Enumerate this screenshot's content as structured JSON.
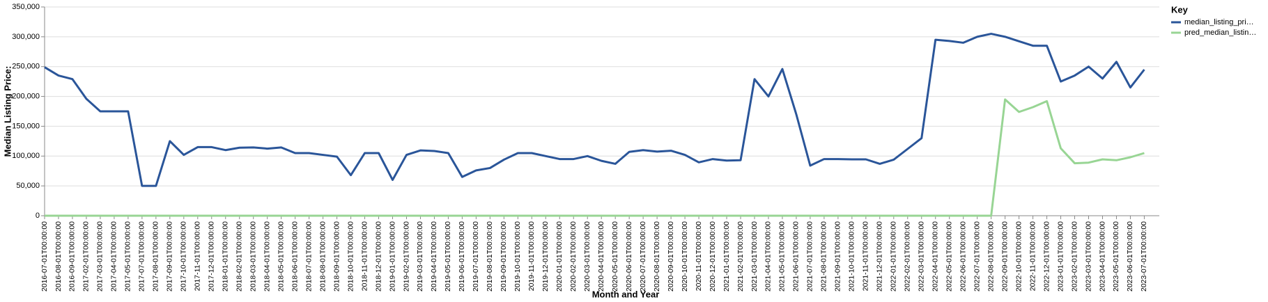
{
  "chart_data": {
    "type": "line",
    "x_label": "Month and Year",
    "y_label": "Median Listing Price:",
    "legend_title": "Key",
    "legend": "top-right",
    "grid": true,
    "categories": [
      "2016-07-01T00:00:00",
      "2016-08-01T00:00:00",
      "2016-09-01T00:00:00",
      "2017-02-01T00:00:00",
      "2017-03-01T00:00:00",
      "2017-04-01T00:00:00",
      "2017-05-01T00:00:00",
      "2017-07-01T00:00:00",
      "2017-08-01T00:00:00",
      "2017-09-01T00:00:00",
      "2017-10-01T00:00:00",
      "2017-11-01T00:00:00",
      "2017-12-01T00:00:00",
      "2018-01-01T00:00:00",
      "2018-02-01T00:00:00",
      "2018-03-01T00:00:00",
      "2018-04-01T00:00:00",
      "2018-05-01T00:00:00",
      "2018-06-01T00:00:00",
      "2018-07-01T00:00:00",
      "2018-08-01T00:00:00",
      "2018-09-01T00:00:00",
      "2018-10-01T00:00:00",
      "2018-11-01T00:00:00",
      "2018-12-01T00:00:00",
      "2019-01-01T00:00:00",
      "2019-02-01T00:00:00",
      "2019-03-01T00:00:00",
      "2019-04-01T00:00:00",
      "2019-05-01T00:00:00",
      "2019-06-01T00:00:00",
      "2019-07-01T00:00:00",
      "2019-08-01T00:00:00",
      "2019-09-01T00:00:00",
      "2019-10-01T00:00:00",
      "2019-11-01T00:00:00",
      "2019-12-01T00:00:00",
      "2020-01-01T00:00:00",
      "2020-02-01T00:00:00",
      "2020-03-01T00:00:00",
      "2020-04-01T00:00:00",
      "2020-05-01T00:00:00",
      "2020-06-01T00:00:00",
      "2020-07-01T00:00:00",
      "2020-08-01T00:00:00",
      "2020-09-01T00:00:00",
      "2020-10-01T00:00:00",
      "2020-11-01T00:00:00",
      "2020-12-01T00:00:00",
      "2021-01-01T00:00:00",
      "2021-02-01T00:00:00",
      "2021-03-01T00:00:00",
      "2021-04-01T00:00:00",
      "2021-05-01T00:00:00",
      "2021-06-01T00:00:00",
      "2021-07-01T00:00:00",
      "2021-08-01T00:00:00",
      "2021-09-01T00:00:00",
      "2021-10-01T00:00:00",
      "2021-11-01T00:00:00",
      "2021-12-01T00:00:00",
      "2022-01-01T00:00:00",
      "2022-02-01T00:00:00",
      "2022-03-01T00:00:00",
      "2022-04-01T00:00:00",
      "2022-05-01T00:00:00",
      "2022-06-01T00:00:00",
      "2022-07-01T00:00:00",
      "2022-08-01T00:00:00",
      "2022-09-01T00:00:00",
      "2022-10-01T00:00:00",
      "2022-11-01T00:00:00",
      "2022-12-01T00:00:00",
      "2023-01-01T00:00:00",
      "2023-02-01T00:00:00",
      "2023-03-01T00:00:00",
      "2023-04-01T00:00:00",
      "2023-05-01T00:00:00",
      "2023-06-01T00:00:00",
      "2023-07-01T00:00:00"
    ],
    "series": [
      {
        "name": "median_listing_pri…",
        "color": "#2a5599",
        "values": [
          249000,
          235000,
          229000,
          196000,
          175000,
          175000,
          175000,
          50000,
          50000,
          125000,
          102000,
          115000,
          115000,
          110000,
          114000,
          114500,
          112500,
          114500,
          105000,
          105000,
          102000,
          99000,
          68000,
          105000,
          105000,
          60000,
          102000,
          109500,
          108500,
          105000,
          65000,
          76000,
          80000,
          94000,
          105000,
          105000,
          100000,
          95000,
          95000,
          100000,
          92000,
          87000,
          107000,
          110000,
          107500,
          109000,
          102000,
          89500,
          95000,
          92500,
          93000,
          229000,
          200000,
          246000,
          170000,
          84000,
          95000,
          95000,
          94500,
          94500,
          87000,
          94000,
          112000,
          130000,
          295000,
          293000,
          290000,
          300000,
          305000,
          300000,
          292500,
          285000,
          285000,
          225000,
          235000,
          250000,
          230000,
          258000,
          215000,
          245000
        ]
      },
      {
        "name": "pred_median_listin…",
        "color": "#98d594",
        "values": [
          0,
          0,
          0,
          0,
          0,
          0,
          0,
          0,
          0,
          0,
          0,
          0,
          0,
          0,
          0,
          0,
          0,
          0,
          0,
          0,
          0,
          0,
          0,
          0,
          0,
          0,
          0,
          0,
          0,
          0,
          0,
          0,
          0,
          0,
          0,
          0,
          0,
          0,
          0,
          0,
          0,
          0,
          0,
          0,
          0,
          0,
          0,
          0,
          0,
          0,
          0,
          0,
          0,
          0,
          0,
          0,
          0,
          0,
          0,
          0,
          0,
          0,
          0,
          0,
          0,
          0,
          0,
          0,
          0,
          195000,
          174000,
          182000,
          192000,
          113000,
          88000,
          89000,
          94500,
          93000,
          98000,
          105000
        ]
      }
    ],
    "ylim": [
      0,
      350000
    ],
    "yticks": [
      0,
      {
        "value": 50000,
        "label": "50,000"
      },
      {
        "value": 100000,
        "label": "100,000"
      },
      {
        "value": 150000,
        "label": "150,000"
      },
      {
        "value": 200000,
        "label": "200,000"
      },
      {
        "value": 250000,
        "label": "250,000"
      },
      {
        "value": 300000,
        "label": "300,000"
      },
      {
        "value": 350000,
        "label": "350,000"
      }
    ]
  }
}
